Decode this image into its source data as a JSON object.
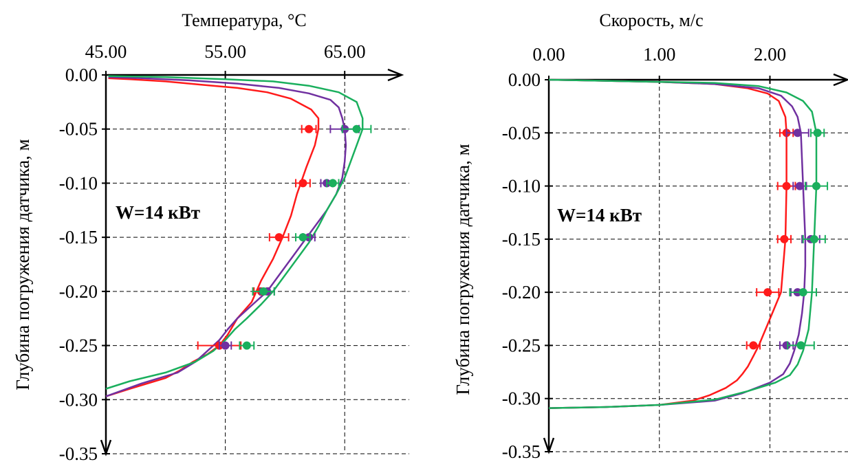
{
  "chart_data": [
    {
      "type": "line",
      "xlabel": "Температура, °C",
      "ylabel": "Глубина погружения датчика, м",
      "annotation": "W=14 кВт",
      "xlim": [
        45,
        70
      ],
      "ylim": [
        -0.35,
        0.0
      ],
      "x_ticks": [
        45,
        55,
        65
      ],
      "x_tick_labels": [
        "45.00",
        "55.00",
        "65.00"
      ],
      "y_ticks": [
        0.0,
        -0.05,
        -0.1,
        -0.15,
        -0.2,
        -0.25,
        -0.3,
        -0.35
      ],
      "y_tick_labels": [
        "0.00",
        "-0.05",
        "-0.10",
        "-0.15",
        "-0.20",
        "-0.25",
        "-0.30",
        "-0.35"
      ],
      "grid": "dashed",
      "colors": {
        "red": "#ff1a1a",
        "purple": "#7030a0",
        "green": "#1aaf5d"
      },
      "series": [
        {
          "color": "red",
          "x": [
            45.2,
            47.0,
            50.0,
            53.0,
            56.0,
            58.5,
            60.5,
            62.2,
            62.8,
            62.8,
            62.5,
            61.8,
            61.0,
            60.5,
            59.8,
            59.0,
            58.0,
            57.2,
            56.0,
            55.2,
            54.5,
            53.5,
            52.3,
            51.2,
            50.0,
            47.0,
            45.0
          ],
          "y": [
            -0.003,
            -0.004,
            -0.006,
            -0.009,
            -0.012,
            -0.016,
            -0.022,
            -0.032,
            -0.04,
            -0.05,
            -0.065,
            -0.085,
            -0.11,
            -0.13,
            -0.15,
            -0.17,
            -0.19,
            -0.21,
            -0.225,
            -0.24,
            -0.25,
            -0.258,
            -0.265,
            -0.273,
            -0.28,
            -0.29,
            -0.297
          ]
        },
        {
          "color": "purple",
          "x": [
            45.2,
            48.0,
            52.0,
            56.0,
            59.5,
            62.0,
            63.8,
            64.5,
            64.8,
            65.0,
            65.1,
            65.0,
            64.8,
            64.3,
            63.5,
            62.5,
            61.5,
            60.5,
            59.5,
            58.5,
            57.0,
            56.0,
            55.2,
            54.5,
            53.5,
            52.5,
            51.0,
            48.0,
            45.0
          ],
          "y": [
            -0.002,
            -0.003,
            -0.005,
            -0.008,
            -0.012,
            -0.017,
            -0.023,
            -0.03,
            -0.04,
            -0.05,
            -0.065,
            -0.08,
            -0.095,
            -0.11,
            -0.125,
            -0.14,
            -0.155,
            -0.17,
            -0.185,
            -0.2,
            -0.215,
            -0.225,
            -0.235,
            -0.245,
            -0.255,
            -0.265,
            -0.275,
            -0.285,
            -0.297
          ]
        },
        {
          "color": "green",
          "x": [
            45.2,
            50.0,
            55.0,
            59.0,
            62.0,
            64.5,
            66.0,
            66.5,
            66.5,
            66.0,
            65.5,
            65.0,
            64.3,
            63.5,
            62.8,
            62.0,
            61.0,
            60.0,
            59.0,
            58.0,
            56.8,
            55.8,
            55.0,
            54.0,
            52.5,
            50.0,
            47.0,
            45.0
          ],
          "y": [
            -0.001,
            -0.002,
            -0.004,
            -0.006,
            -0.01,
            -0.016,
            -0.025,
            -0.04,
            -0.05,
            -0.065,
            -0.08,
            -0.095,
            -0.11,
            -0.125,
            -0.14,
            -0.155,
            -0.17,
            -0.185,
            -0.2,
            -0.212,
            -0.225,
            -0.235,
            -0.245,
            -0.255,
            -0.265,
            -0.275,
            -0.283,
            -0.29
          ]
        }
      ],
      "points": [
        {
          "color": "red",
          "x": 62.0,
          "y": -0.05,
          "err": 0.6
        },
        {
          "color": "red",
          "x": 61.5,
          "y": -0.1,
          "err": 0.6
        },
        {
          "color": "red",
          "x": 59.5,
          "y": -0.15,
          "err": 0.8
        },
        {
          "color": "red",
          "x": 58.0,
          "y": -0.2,
          "err": 0.6
        },
        {
          "color": "red",
          "x": 54.5,
          "y": -0.25,
          "err": 1.8
        },
        {
          "color": "purple",
          "x": 65.0,
          "y": -0.05,
          "err": 1.2
        },
        {
          "color": "purple",
          "x": 63.5,
          "y": -0.1,
          "err": 0.5
        },
        {
          "color": "purple",
          "x": 62.0,
          "y": -0.15,
          "err": 0.5
        },
        {
          "color": "purple",
          "x": 58.5,
          "y": -0.2,
          "err": 0.6
        },
        {
          "color": "purple",
          "x": 55.0,
          "y": -0.25,
          "err": 0.5
        },
        {
          "color": "green",
          "x": 66.0,
          "y": -0.05,
          "err": 1.2
        },
        {
          "color": "green",
          "x": 64.0,
          "y": -0.1,
          "err": 0.5
        },
        {
          "color": "green",
          "x": 61.5,
          "y": -0.15,
          "err": 0.6
        },
        {
          "color": "green",
          "x": 58.2,
          "y": -0.2,
          "err": 0.9
        },
        {
          "color": "green",
          "x": 56.8,
          "y": -0.25,
          "err": 0.6
        }
      ]
    },
    {
      "type": "line",
      "xlabel": "Скорость, м/с",
      "ylabel": "Глубина погружения датчика, м",
      "annotation": "W=14 кВт",
      "xlim": [
        0,
        2.7
      ],
      "ylim": [
        -0.35,
        0.0
      ],
      "x_ticks": [
        0,
        1,
        2
      ],
      "x_tick_labels": [
        "0.00",
        "1.00",
        "2.00"
      ],
      "y_ticks": [
        0.0,
        -0.05,
        -0.1,
        -0.15,
        -0.2,
        -0.25,
        -0.3,
        -0.35
      ],
      "y_tick_labels": [
        "0.00",
        "-0.05",
        "-0.10",
        "-0.15",
        "-0.20",
        "-0.25",
        "-0.30",
        "-0.35"
      ],
      "grid": "dashed",
      "colors": {
        "red": "#ff1a1a",
        "purple": "#7030a0",
        "green": "#1aaf5d"
      },
      "series": [
        {
          "color": "red",
          "x": [
            0.0,
            0.5,
            1.0,
            1.5,
            1.8,
            1.98,
            2.08,
            2.14,
            2.15,
            2.15,
            2.14,
            2.12,
            2.1,
            2.06,
            2.02,
            1.98,
            1.94,
            1.9,
            1.85,
            1.8,
            1.75,
            1.7,
            1.6,
            1.45,
            1.3,
            1.0,
            0.5,
            0.0
          ],
          "y": [
            -0.0,
            -0.001,
            -0.002,
            -0.004,
            -0.008,
            -0.013,
            -0.02,
            -0.035,
            -0.05,
            -0.1,
            -0.15,
            -0.175,
            -0.2,
            -0.21,
            -0.22,
            -0.23,
            -0.24,
            -0.25,
            -0.26,
            -0.27,
            -0.277,
            -0.283,
            -0.29,
            -0.297,
            -0.302,
            -0.306,
            -0.308,
            -0.309
          ]
        },
        {
          "color": "purple",
          "x": [
            0.0,
            0.5,
            1.0,
            1.5,
            1.9,
            2.1,
            2.2,
            2.25,
            2.28,
            2.3,
            2.32,
            2.32,
            2.31,
            2.29,
            2.26,
            2.22,
            2.18,
            2.12,
            2.0,
            1.75,
            1.5,
            1.0,
            0.5,
            0.0
          ],
          "y": [
            -0.0,
            -0.001,
            -0.002,
            -0.004,
            -0.008,
            -0.015,
            -0.025,
            -0.035,
            -0.05,
            -0.1,
            -0.15,
            -0.175,
            -0.2,
            -0.22,
            -0.24,
            -0.255,
            -0.267,
            -0.277,
            -0.285,
            -0.295,
            -0.302,
            -0.306,
            -0.308,
            -0.309
          ]
        },
        {
          "color": "green",
          "x": [
            0.0,
            0.5,
            1.0,
            1.5,
            1.9,
            2.15,
            2.3,
            2.38,
            2.42,
            2.42,
            2.4,
            2.38,
            2.35,
            2.3,
            2.25,
            2.18,
            2.05,
            1.8,
            1.5,
            1.0,
            0.5,
            0.0
          ],
          "y": [
            -0.0,
            -0.001,
            -0.002,
            -0.003,
            -0.006,
            -0.012,
            -0.02,
            -0.03,
            -0.05,
            -0.1,
            -0.15,
            -0.2,
            -0.235,
            -0.255,
            -0.268,
            -0.278,
            -0.285,
            -0.293,
            -0.301,
            -0.306,
            -0.308,
            -0.309
          ]
        }
      ],
      "points": [
        {
          "color": "red",
          "x": 2.15,
          "y": -0.05,
          "err": 0.06
        },
        {
          "color": "red",
          "x": 2.15,
          "y": -0.1,
          "err": 0.08
        },
        {
          "color": "red",
          "x": 2.13,
          "y": -0.15,
          "err": 0.06
        },
        {
          "color": "red",
          "x": 1.98,
          "y": -0.2,
          "err": 0.1
        },
        {
          "color": "red",
          "x": 1.85,
          "y": -0.25,
          "err": 0.06
        },
        {
          "color": "purple",
          "x": 2.25,
          "y": -0.05,
          "err": 0.1
        },
        {
          "color": "purple",
          "x": 2.27,
          "y": -0.1,
          "err": 0.06
        },
        {
          "color": "purple",
          "x": 2.37,
          "y": -0.15,
          "err": 0.08
        },
        {
          "color": "purple",
          "x": 2.25,
          "y": -0.2,
          "err": 0.06
        },
        {
          "color": "purple",
          "x": 2.15,
          "y": -0.25,
          "err": 0.06
        },
        {
          "color": "green",
          "x": 2.43,
          "y": -0.05,
          "err": 0.06
        },
        {
          "color": "green",
          "x": 2.42,
          "y": -0.1,
          "err": 0.1
        },
        {
          "color": "green",
          "x": 2.4,
          "y": -0.15,
          "err": 0.1
        },
        {
          "color": "green",
          "x": 2.3,
          "y": -0.2,
          "err": 0.12
        },
        {
          "color": "green",
          "x": 2.28,
          "y": -0.25,
          "err": 0.12
        }
      ]
    }
  ]
}
